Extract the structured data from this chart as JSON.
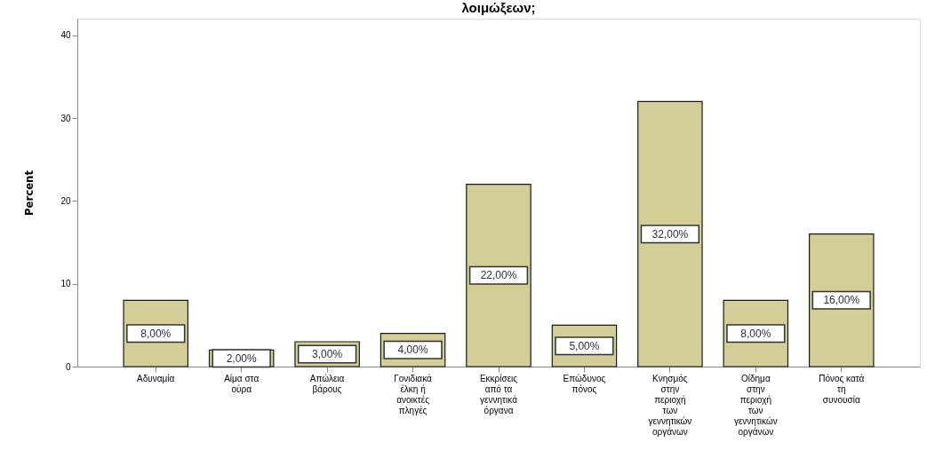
{
  "chart_data": {
    "type": "bar",
    "title": "λοιμώξεων;",
    "ylabel": "Percent",
    "categories": [
      "Αδυναμία",
      "Αίμα στα ούρα",
      "Απώλεια βάρους",
      "Γονιδιακά έλκη ή ανοικτές πληγές",
      "Εκκρίσεις από τα γεννητικά όργανα",
      "Επώδυνος πόνος",
      "Κνησμός στην περιοχή των γεννητικών οργάνων",
      "Οίδημα στην περιοχή των γεννητικών οργάνων",
      "Πόνος κατά τη συνουσία"
    ],
    "values": [
      8,
      2,
      3,
      4,
      22,
      5,
      32,
      8,
      16
    ],
    "value_labels": [
      "8,00%",
      "2,00%",
      "3,00%",
      "4,00%",
      "22,00%",
      "5,00%",
      "32,00%",
      "8,00%",
      "16,00%"
    ],
    "color": "#d3ce97",
    "ylim": [
      0,
      42
    ],
    "yticks": [
      0,
      10,
      20,
      30,
      40
    ],
    "grid": false
  }
}
